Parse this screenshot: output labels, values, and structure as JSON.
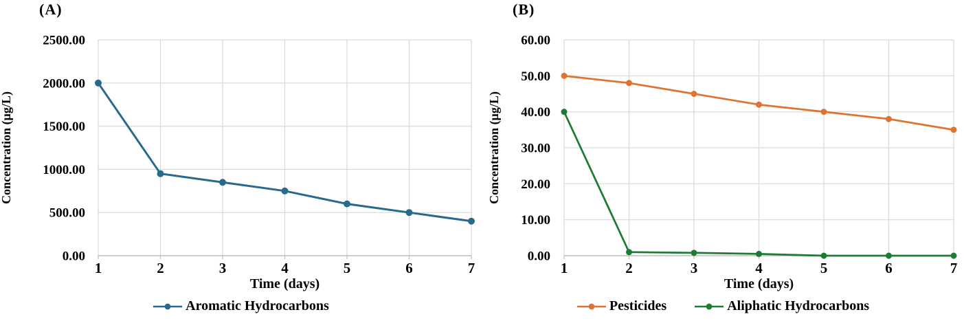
{
  "colors": {
    "grid": "#d9d9d9",
    "axis": "#bdbdbd",
    "text": "#000000",
    "background": "#ffffff",
    "series_blue": "#276a8b",
    "series_orange": "#dd7434",
    "series_green": "#1e7b34"
  },
  "chart_data": [
    {
      "type": "line",
      "panel_label": "(A)",
      "x": [
        1,
        2,
        3,
        4,
        5,
        6,
        7
      ],
      "xticks": [
        "1",
        "2",
        "3",
        "4",
        "5",
        "6",
        "7"
      ],
      "yticks": [
        "0.00",
        "500.00",
        "1000.00",
        "1500.00",
        "2000.00",
        "2500.00"
      ],
      "ylim": [
        0,
        2500
      ],
      "xlabel": "Time (days)",
      "ylabel": "Concentration (µg/L)",
      "grid": true,
      "legend_position": "bottom",
      "series": [
        {
          "name": "Aromatic Hydrocarbons",
          "color": "#276a8b",
          "marker": "circle",
          "values": [
            2000,
            950,
            850,
            750,
            600,
            500,
            400
          ]
        }
      ]
    },
    {
      "type": "line",
      "panel_label": "(B)",
      "x": [
        1,
        2,
        3,
        4,
        5,
        6,
        7
      ],
      "xticks": [
        "1",
        "2",
        "3",
        "4",
        "5",
        "6",
        "7"
      ],
      "yticks": [
        "0.00",
        "10.00",
        "20.00",
        "30.00",
        "40.00",
        "50.00",
        "60.00"
      ],
      "ylim": [
        0,
        60
      ],
      "xlabel": "Time (days)",
      "ylabel": "Concentration (µg/L)",
      "grid": true,
      "legend_position": "bottom",
      "series": [
        {
          "name": "Pesticides",
          "color": "#dd7434",
          "marker": "circle",
          "values": [
            50,
            48,
            45,
            42,
            40,
            38,
            35
          ]
        },
        {
          "name": "Aliphatic Hydrocarbons",
          "color": "#1e7b34",
          "marker": "circle",
          "values": [
            40,
            1,
            0.8,
            0.5,
            0,
            0,
            0
          ]
        }
      ]
    }
  ]
}
